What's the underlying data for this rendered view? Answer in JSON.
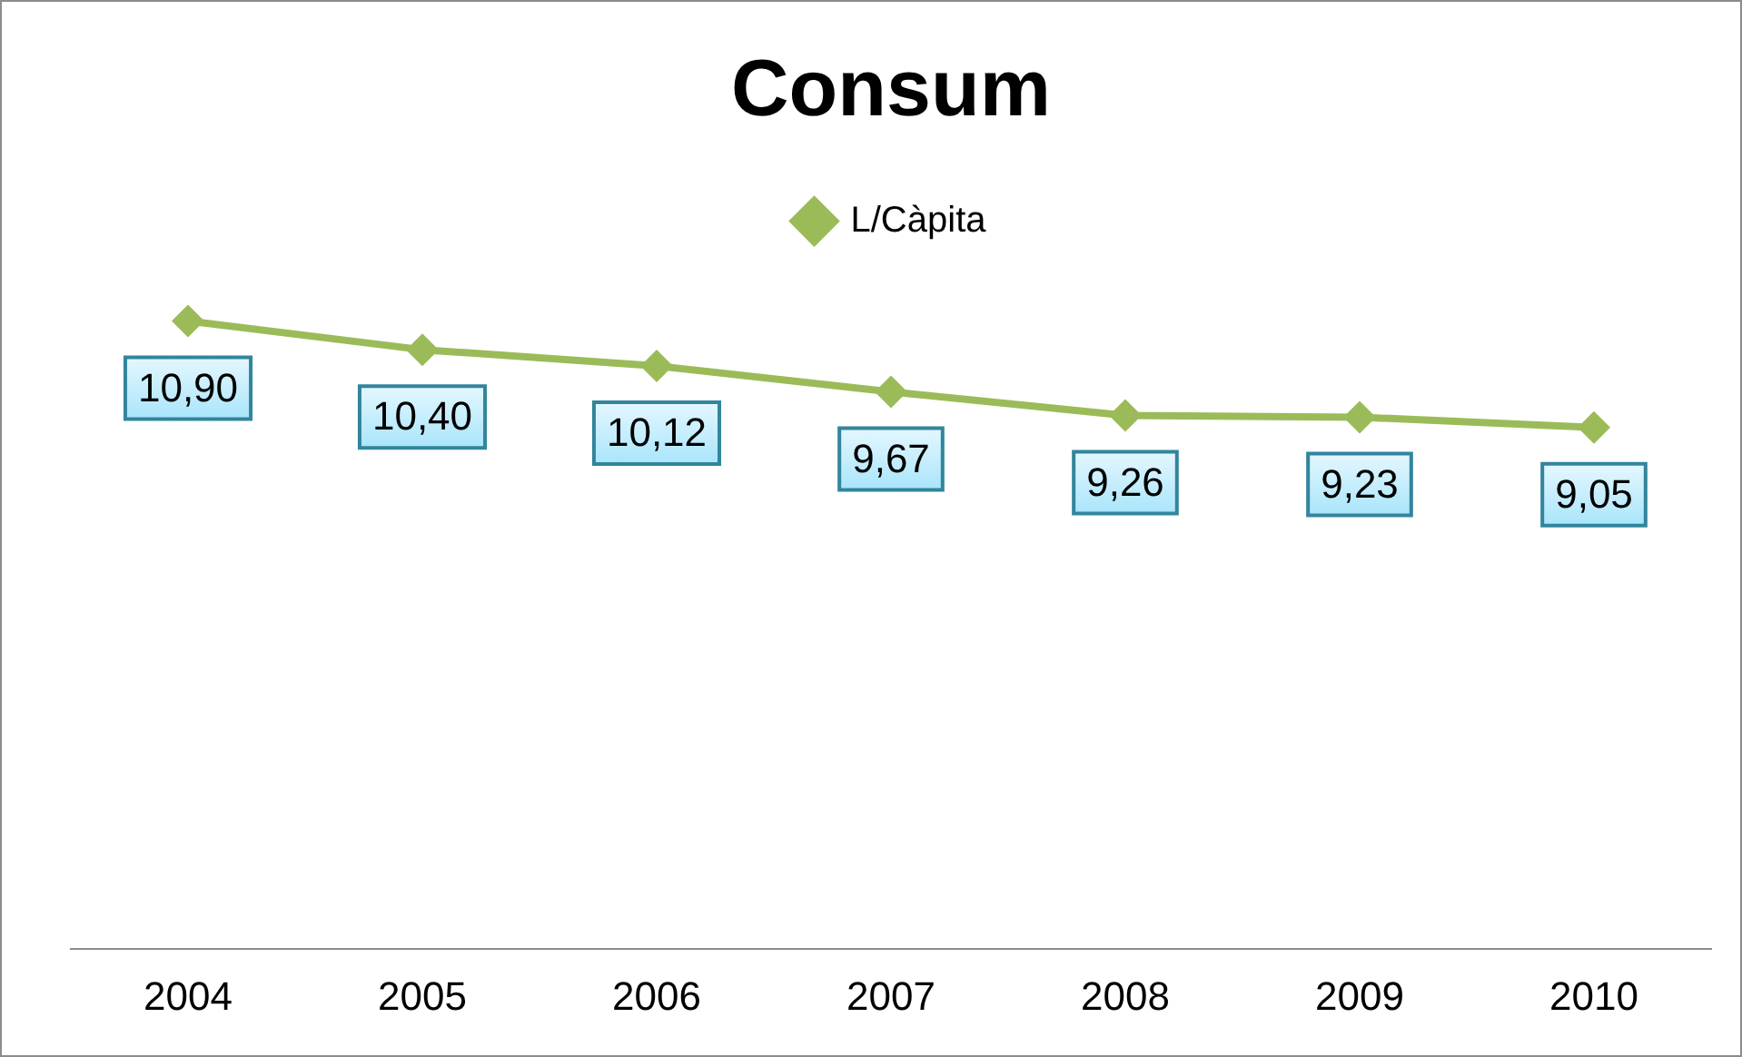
{
  "chart_data": {
    "type": "line",
    "title": "Consum",
    "categories": [
      "2004",
      "2005",
      "2006",
      "2007",
      "2008",
      "2009",
      "2010"
    ],
    "series": [
      {
        "name": "L/Càpita",
        "color": "#9bbb59",
        "values": [
          10.9,
          10.4,
          10.12,
          9.67,
          9.26,
          9.23,
          9.05
        ],
        "value_labels": [
          "10,90",
          "10,40",
          "10,12",
          "9,67",
          "9,26",
          "9,23",
          "9,05"
        ]
      }
    ],
    "legend": "top",
    "marker": "diamond",
    "grid": false
  }
}
